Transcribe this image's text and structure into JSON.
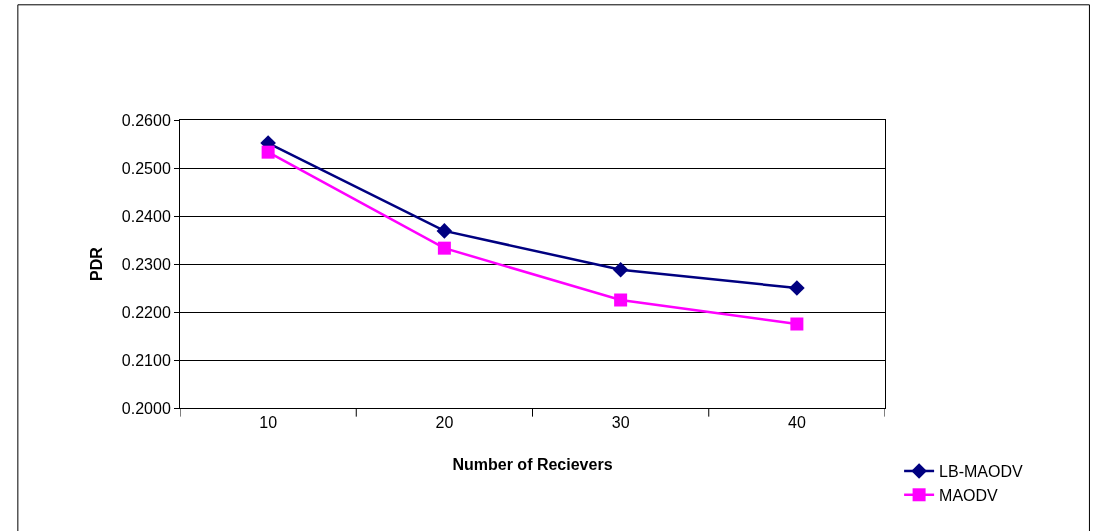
{
  "chart_data": {
    "type": "line",
    "xlabel": "Number of Recievers",
    "ylabel": "PDR",
    "categories": [
      "10",
      "20",
      "30",
      "40"
    ],
    "series": [
      {
        "name": "LB-MAODV",
        "color": "#000080",
        "marker": "diamond",
        "values": [
          0.2552,
          0.2369,
          0.2288,
          0.225
        ]
      },
      {
        "name": "MAODV",
        "color": "#ff00ff",
        "marker": "square",
        "values": [
          0.2533,
          0.2333,
          0.2225,
          0.2175
        ]
      }
    ],
    "ylim": [
      0.2,
      0.26
    ],
    "yticks": [
      {
        "value": 0.2,
        "label": "0.2000"
      },
      {
        "value": 0.21,
        "label": "0.2100"
      },
      {
        "value": 0.22,
        "label": "0.2200"
      },
      {
        "value": 0.23,
        "label": "0.2300"
      },
      {
        "value": 0.24,
        "label": "0.2400"
      },
      {
        "value": 0.25,
        "label": "0.2500"
      },
      {
        "value": 0.26,
        "label": "0.2600"
      }
    ],
    "grid": "y",
    "legend": "bottom right",
    "line_style": "solid"
  }
}
